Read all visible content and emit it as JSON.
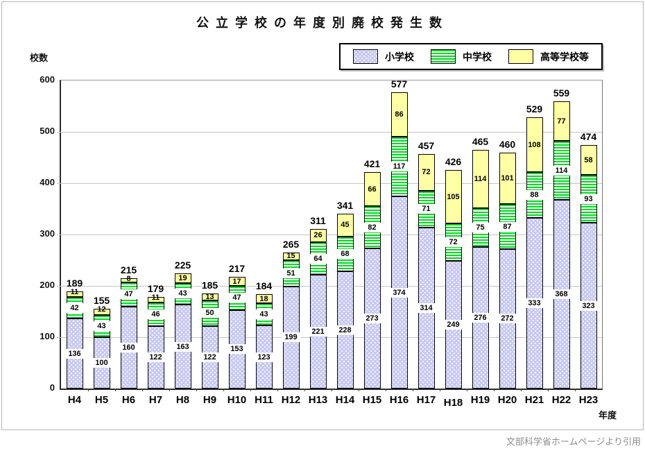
{
  "page": {
    "title": "公立学校の年度別廃校発生数",
    "y_axis_title": "校数",
    "x_axis_title": "年度",
    "citation": "文部科学省ホームページより引用"
  },
  "legend": {
    "items": [
      {
        "key": "elementary",
        "label": "小学校"
      },
      {
        "key": "junior-high",
        "label": "中学校"
      },
      {
        "key": "high-school",
        "label": "高等学校等"
      }
    ]
  },
  "colors": {
    "elementary_fill": "#c9c9f3",
    "elementary_dot": "#ffffff",
    "junior_high_stripe": "#00d822",
    "junior_high_bg": "#ffffff",
    "high_school_fill": "#ffffa6",
    "bar_border": "#000000",
    "gridline": "#c4c4c4",
    "citation_text": "#8c8c8c"
  },
  "chart_data": {
    "type": "bar",
    "stacked": true,
    "title": "公立学校の年度別廃校発生数",
    "xlabel": "年度",
    "ylabel": "校数",
    "ylim": [
      0,
      600
    ],
    "ytick_interval": 100,
    "grid": true,
    "legend_position": "top-right",
    "categories": [
      "H4",
      "H5",
      "H6",
      "H7",
      "H8",
      "H9",
      "H10",
      "H11",
      "H12",
      "H13",
      "H14",
      "H15",
      "H16",
      "H17",
      "H18",
      "H19",
      "H20",
      "H21",
      "H22",
      "H23"
    ],
    "series": [
      {
        "name": "小学校",
        "values": [
          136,
          100,
          160,
          122,
          163,
          122,
          153,
          123,
          199,
          221,
          228,
          273,
          374,
          314,
          249,
          276,
          272,
          333,
          368,
          323
        ]
      },
      {
        "name": "中学校",
        "values": [
          42,
          43,
          47,
          46,
          43,
          50,
          47,
          43,
          51,
          64,
          68,
          82,
          117,
          71,
          72,
          75,
          87,
          88,
          114,
          93
        ]
      },
      {
        "name": "高等学校等",
        "values": [
          11,
          12,
          8,
          11,
          19,
          13,
          17,
          18,
          15,
          26,
          45,
          66,
          86,
          72,
          105,
          114,
          101,
          108,
          77,
          58
        ]
      }
    ],
    "totals": [
      189,
      155,
      215,
      179,
      225,
      185,
      217,
      184,
      265,
      311,
      341,
      421,
      577,
      457,
      426,
      465,
      460,
      529,
      559,
      474
    ],
    "x_label_dy": [
      0,
      0,
      0,
      0,
      0,
      0,
      0,
      0,
      0,
      0,
      0,
      0,
      0,
      0,
      4,
      0,
      0,
      0,
      0,
      0
    ]
  }
}
